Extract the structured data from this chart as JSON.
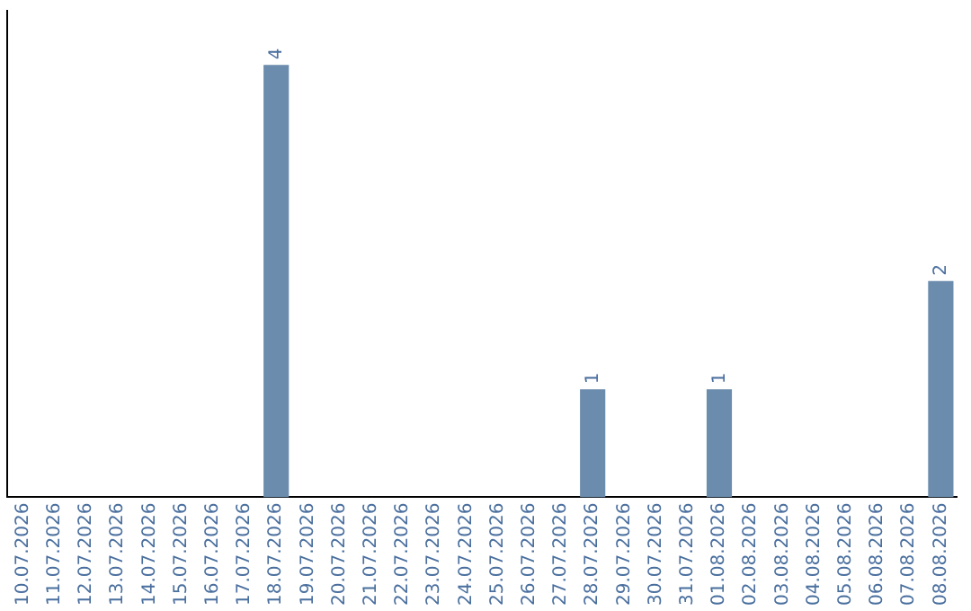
{
  "chart_data": {
    "type": "bar",
    "categories": [
      "10.07.2026",
      "11.07.2026",
      "12.07.2026",
      "13.07.2026",
      "14.07.2026",
      "15.07.2026",
      "16.07.2026",
      "17.07.2026",
      "18.07.2026",
      "19.07.2026",
      "20.07.2026",
      "21.07.2026",
      "22.07.2026",
      "23.07.2026",
      "24.07.2026",
      "25.07.2026",
      "26.07.2026",
      "27.07.2026",
      "28.07.2026",
      "29.07.2026",
      "30.07.2026",
      "31.07.2026",
      "01.08.2026",
      "02.08.2026",
      "03.08.2026",
      "04.08.2026",
      "05.08.2026",
      "06.08.2026",
      "07.08.2026",
      "08.08.2026"
    ],
    "values": [
      0,
      0,
      0,
      0,
      0,
      0,
      0,
      0,
      4,
      0,
      0,
      0,
      0,
      0,
      0,
      0,
      0,
      0,
      1,
      0,
      0,
      0,
      1,
      0,
      0,
      0,
      0,
      0,
      0,
      2
    ],
    "value_labels": [
      null,
      null,
      null,
      null,
      null,
      null,
      null,
      null,
      "4",
      null,
      null,
      null,
      null,
      null,
      null,
      null,
      null,
      null,
      "1",
      null,
      null,
      null,
      "1",
      null,
      null,
      null,
      null,
      null,
      null,
      "2"
    ],
    "color": "#6b8cad",
    "tick_labels": "x",
    "grid": false,
    "legend": false
  }
}
